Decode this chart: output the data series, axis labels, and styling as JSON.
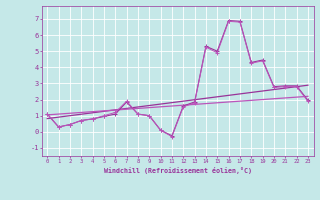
{
  "xlabel": "Windchill (Refroidissement éolien,°C)",
  "background_color": "#c5e8e8",
  "grid_color": "#ffffff",
  "line_color1": "#993399",
  "line_color2": "#bb55bb",
  "x_data": [
    0,
    1,
    2,
    3,
    4,
    5,
    6,
    7,
    8,
    9,
    10,
    11,
    12,
    13,
    14,
    15,
    16,
    17,
    18,
    19,
    20,
    21,
    22,
    23
  ],
  "y_series1": [
    1.1,
    0.3,
    0.45,
    0.7,
    0.8,
    0.95,
    1.1,
    1.85,
    1.1,
    1.0,
    0.1,
    -0.25,
    1.6,
    1.85,
    5.3,
    5.0,
    6.9,
    6.85,
    4.3,
    4.45,
    2.8,
    2.85,
    2.85,
    1.95
  ],
  "y_series2": [
    1.1,
    0.3,
    0.45,
    0.7,
    0.8,
    1.0,
    1.2,
    1.9,
    1.1,
    1.0,
    0.1,
    -0.3,
    1.55,
    1.8,
    5.25,
    4.9,
    6.85,
    6.8,
    4.25,
    4.4,
    2.75,
    2.8,
    2.8,
    1.9
  ],
  "y_linear1": [
    0.82,
    0.91,
    1.0,
    1.09,
    1.18,
    1.27,
    1.36,
    1.45,
    1.54,
    1.63,
    1.72,
    1.81,
    1.9,
    1.99,
    2.08,
    2.17,
    2.26,
    2.35,
    2.44,
    2.53,
    2.62,
    2.71,
    2.8,
    2.89
  ],
  "y_linear2": [
    1.05,
    1.1,
    1.15,
    1.2,
    1.25,
    1.3,
    1.35,
    1.4,
    1.45,
    1.5,
    1.55,
    1.6,
    1.65,
    1.7,
    1.75,
    1.8,
    1.85,
    1.9,
    1.95,
    2.0,
    2.05,
    2.1,
    2.15,
    2.2
  ],
  "ylim": [
    -1.5,
    7.8
  ],
  "yticks": [
    -1,
    0,
    1,
    2,
    3,
    4,
    5,
    6,
    7
  ],
  "xticks": [
    0,
    1,
    2,
    3,
    4,
    5,
    6,
    7,
    8,
    9,
    10,
    11,
    12,
    13,
    14,
    15,
    16,
    17,
    18,
    19,
    20,
    21,
    22,
    23
  ],
  "markersize": 2.5,
  "lw1": 0.8,
  "lw2": 0.7
}
